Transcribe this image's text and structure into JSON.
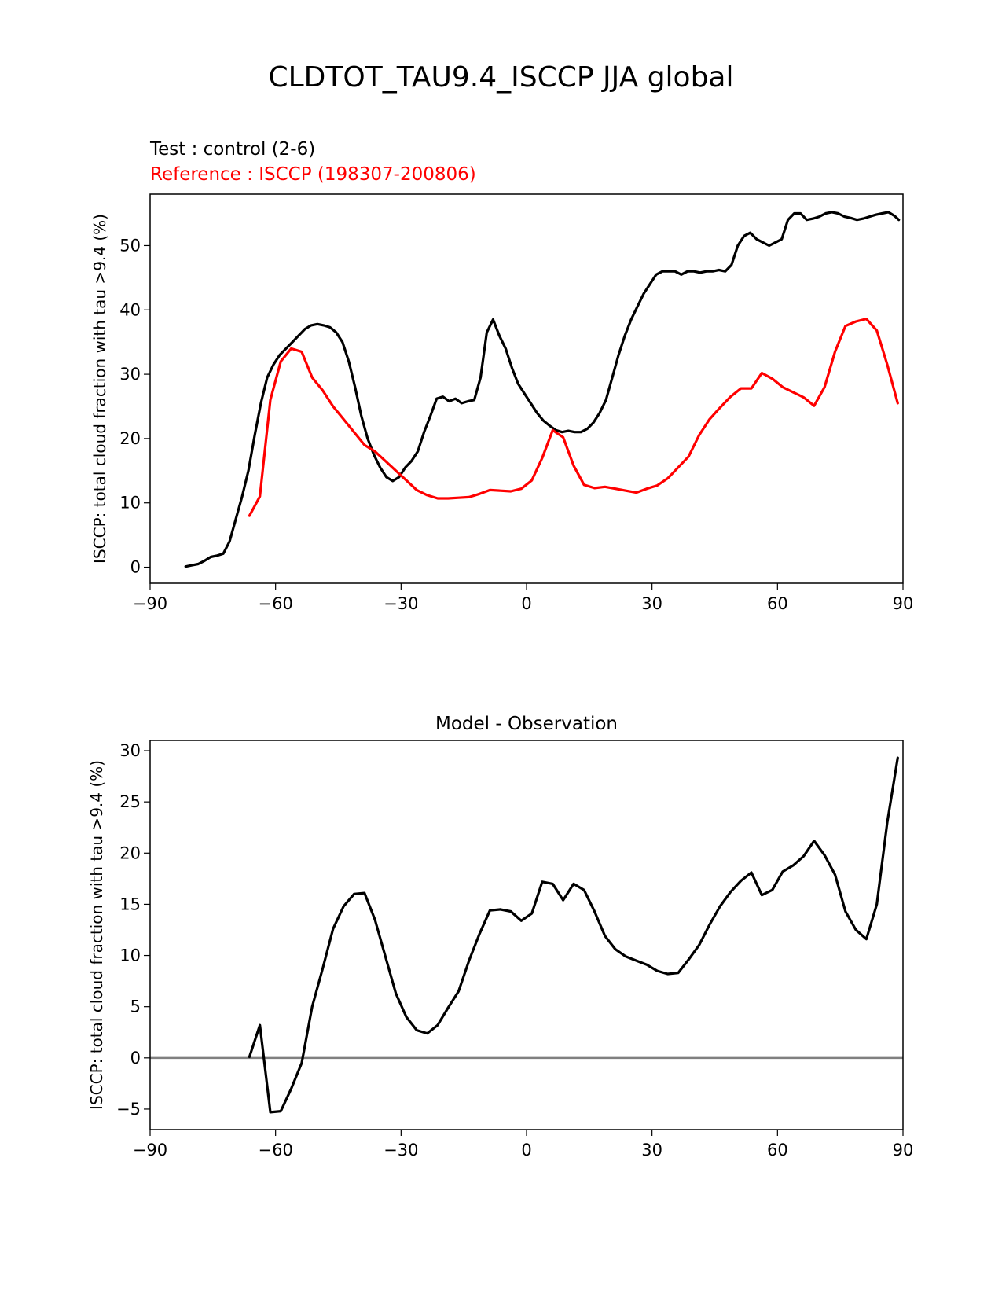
{
  "figure": {
    "title": "CLDTOT_TAU9.4_ISCCP JJA global"
  },
  "colors": {
    "test": "#000000",
    "reference": "#ff0000",
    "zero_line": "#808080",
    "axes": "#000000"
  },
  "chart_data": [
    {
      "type": "line",
      "test_label": "Test : control (2-6)",
      "reference_label": "Reference : ISCCP (198307-200806)",
      "ylabel": "ISCCP: total cloud fraction with tau >9.4 (%)",
      "xlim": [
        -90,
        90
      ],
      "ylim": [
        -2.5,
        58
      ],
      "xticks": [
        -90,
        -60,
        -30,
        0,
        30,
        60,
        90
      ],
      "yticks": [
        0,
        10,
        20,
        30,
        40,
        50
      ],
      "series": [
        {
          "role": "test",
          "color": "#000000",
          "x": [
            -81.5,
            -80,
            -78.5,
            -77,
            -75.5,
            -74,
            -72.5,
            -71,
            -69.5,
            -68,
            -66.5,
            -65,
            -63.5,
            -62,
            -60.5,
            -59,
            -57.5,
            -56,
            -54.5,
            -53,
            -51.5,
            -50,
            -48.5,
            -47,
            -45.5,
            -44,
            -42.5,
            -41,
            -39.5,
            -38,
            -36.5,
            -35,
            -33.5,
            -32,
            -30.5,
            -29,
            -27.5,
            -26,
            -24.5,
            -23,
            -21.5,
            -20,
            -18.5,
            -17,
            -15.5,
            -14,
            -12.5,
            -11,
            -9.5,
            -8,
            -6.5,
            -5,
            -3.5,
            -2,
            -0.5,
            1,
            2.5,
            4,
            5.5,
            7,
            8.5,
            10,
            11.5,
            13,
            14.5,
            16,
            17.5,
            19,
            20.5,
            22,
            23.5,
            25,
            26.5,
            28,
            29.5,
            31,
            32.5,
            34,
            35.5,
            37,
            38.5,
            40,
            41.5,
            43,
            44.5,
            46,
            47.5,
            49,
            50.5,
            52,
            53.5,
            55,
            56.5,
            58,
            59.5,
            61,
            62.5,
            64,
            65.5,
            67,
            68.5,
            70,
            71.5,
            73,
            74.5,
            76,
            77.5,
            79,
            80.5,
            82,
            83.5,
            85,
            86.5,
            88,
            89
          ],
          "y": [
            0.1,
            0.3,
            0.5,
            1.0,
            1.6,
            1.8,
            2.1,
            4.0,
            7.5,
            11.0,
            15.0,
            20.5,
            25.5,
            29.5,
            31.5,
            33.0,
            34.0,
            35.0,
            36.0,
            37.0,
            37.6,
            37.8,
            37.6,
            37.3,
            36.5,
            35.0,
            32.0,
            28.0,
            23.5,
            20.0,
            17.5,
            15.5,
            14.0,
            13.4,
            14.0,
            15.5,
            16.5,
            18.0,
            21.0,
            23.5,
            26.2,
            26.5,
            25.8,
            26.2,
            25.5,
            25.8,
            26.0,
            29.5,
            36.5,
            38.5,
            36.0,
            34.0,
            31.0,
            28.5,
            27.0,
            25.5,
            24.0,
            22.8,
            22.0,
            21.3,
            21.0,
            21.2,
            21.0,
            21.0,
            21.5,
            22.5,
            24.0,
            26.0,
            29.5,
            33.0,
            36.0,
            38.5,
            40.5,
            42.5,
            44.0,
            45.5,
            46.0,
            46.0,
            46.0,
            45.5,
            46.0,
            46.0,
            45.8,
            46.0,
            46.0,
            46.2,
            46.0,
            47.0,
            50.0,
            51.5,
            52.0,
            51.0,
            50.5,
            50.0,
            50.5,
            51.0,
            54.0,
            55.0,
            55.0,
            54.0,
            54.2,
            54.5,
            55.0,
            55.2,
            55.0,
            54.5,
            54.3,
            54.0,
            54.2,
            54.5,
            54.8,
            55.0,
            55.2,
            54.6,
            54.0
          ]
        },
        {
          "role": "reference",
          "color": "#ff0000",
          "x": [
            -66.25,
            -63.75,
            -61.25,
            -58.75,
            -56.25,
            -53.75,
            -51.25,
            -48.75,
            -46.25,
            -43.75,
            -41.25,
            -38.75,
            -36.25,
            -33.75,
            -31.25,
            -28.75,
            -26.25,
            -23.75,
            -21.25,
            -18.75,
            -16.25,
            -13.75,
            -11.25,
            -8.75,
            -6.25,
            -3.75,
            -1.25,
            1.25,
            3.75,
            6.25,
            8.75,
            11.25,
            13.75,
            16.25,
            18.75,
            21.25,
            23.75,
            26.25,
            28.75,
            31.25,
            33.75,
            36.25,
            38.75,
            41.25,
            43.75,
            46.25,
            48.75,
            51.25,
            53.75,
            56.25,
            58.75,
            61.25,
            63.75,
            66.25,
            68.75,
            71.25,
            73.75,
            76.25,
            78.75,
            81.25,
            83.75,
            86.25,
            88.75
          ],
          "y": [
            8.0,
            11.0,
            26.0,
            32.0,
            34.0,
            33.5,
            29.5,
            27.5,
            25.0,
            23.0,
            21.0,
            19.0,
            18.0,
            16.5,
            15.0,
            13.5,
            12.0,
            11.2,
            10.7,
            10.7,
            10.8,
            10.9,
            11.4,
            12.0,
            11.9,
            11.8,
            12.2,
            13.5,
            17.0,
            21.3,
            20.2,
            15.8,
            12.8,
            12.3,
            12.5,
            12.2,
            11.9,
            11.6,
            12.2,
            12.7,
            13.8,
            15.5,
            17.2,
            20.5,
            23.0,
            24.8,
            26.5,
            27.8,
            27.8,
            30.2,
            29.3,
            28.0,
            27.2,
            26.4,
            25.1,
            28.0,
            33.5,
            37.5,
            38.2,
            38.6,
            36.8,
            31.5,
            25.5
          ]
        }
      ]
    },
    {
      "type": "line",
      "title": "Model - Observation",
      "ylabel": "ISCCP: total cloud fraction with tau >9.4 (%)",
      "xlim": [
        -90,
        90
      ],
      "ylim": [
        -7,
        31
      ],
      "xticks": [
        -90,
        -60,
        -30,
        0,
        30,
        60,
        90
      ],
      "yticks": [
        -5,
        0,
        5,
        10,
        15,
        20,
        25,
        30
      ],
      "zero_line": true,
      "series": [
        {
          "role": "difference",
          "color": "#000000",
          "x": [
            -66.25,
            -63.75,
            -61.25,
            -58.75,
            -56.25,
            -53.75,
            -51.25,
            -48.75,
            -46.25,
            -43.75,
            -41.25,
            -38.75,
            -36.25,
            -33.75,
            -31.25,
            -28.75,
            -26.25,
            -23.75,
            -21.25,
            -18.75,
            -16.25,
            -13.75,
            -11.25,
            -8.75,
            -6.25,
            -3.75,
            -1.25,
            1.25,
            3.75,
            6.25,
            8.75,
            11.25,
            13.75,
            16.25,
            18.75,
            21.25,
            23.75,
            26.25,
            28.75,
            31.25,
            33.75,
            36.25,
            38.75,
            41.25,
            43.75,
            46.25,
            48.75,
            51.25,
            53.75,
            56.25,
            58.75,
            61.25,
            63.75,
            66.25,
            68.75,
            71.25,
            73.75,
            76.25,
            78.75,
            81.25,
            83.75,
            86.25,
            88.75
          ],
          "y": [
            0.1,
            3.2,
            -5.3,
            -5.2,
            -3.0,
            -0.5,
            5.0,
            8.7,
            12.6,
            14.8,
            16.0,
            16.1,
            13.5,
            9.9,
            6.3,
            4.0,
            2.7,
            2.4,
            3.2,
            4.9,
            6.5,
            9.5,
            12.1,
            14.4,
            14.5,
            14.3,
            13.4,
            14.1,
            17.2,
            17.0,
            15.4,
            17.0,
            16.4,
            14.3,
            11.9,
            10.6,
            9.9,
            9.5,
            9.1,
            8.5,
            8.2,
            8.3,
            9.6,
            11.0,
            13.0,
            14.8,
            16.2,
            17.3,
            18.1,
            15.9,
            16.4,
            18.2,
            18.8,
            19.7,
            21.2,
            19.8,
            17.9,
            14.3,
            12.5,
            11.6,
            15.0,
            23.0,
            29.3
          ]
        }
      ]
    }
  ]
}
